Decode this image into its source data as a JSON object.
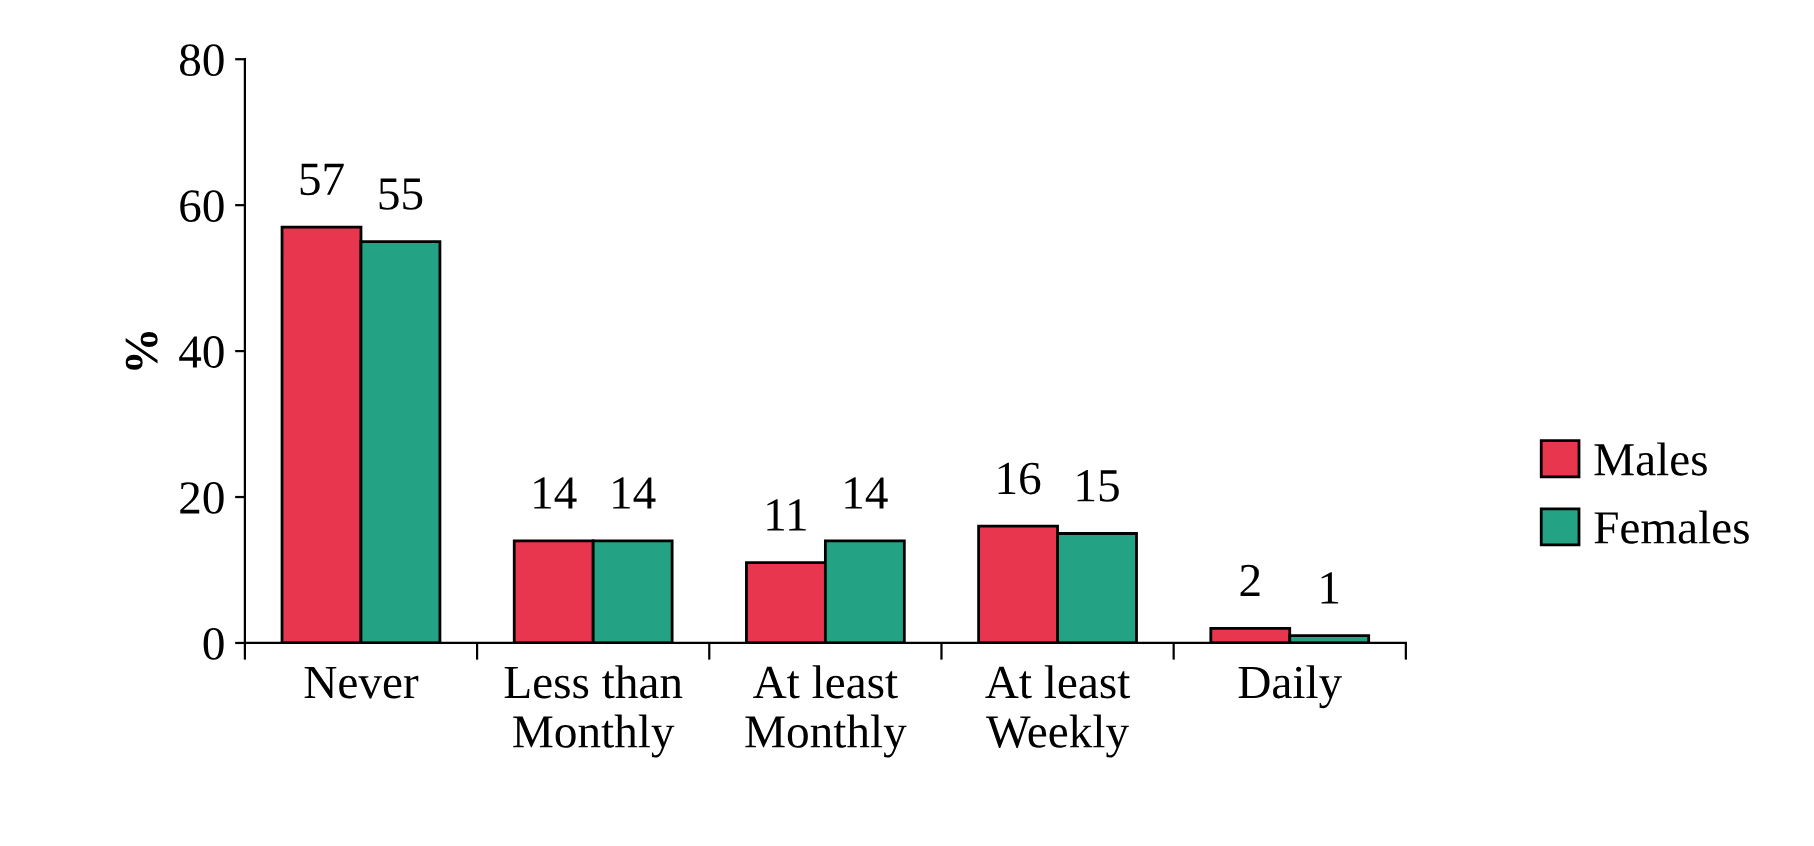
{
  "chart_data": {
    "type": "bar",
    "ylabel": "%",
    "categories": [
      "Never",
      "Less than\nMonthly",
      "At least\nMonthly",
      "At least\nWeekly",
      "Daily"
    ],
    "series": [
      {
        "name": "Males",
        "color": "#e8364e",
        "values": [
          57,
          14,
          11,
          16,
          2
        ]
      },
      {
        "name": "Females",
        "color": "#23a383",
        "values": [
          55,
          14,
          14,
          15,
          1
        ]
      }
    ],
    "ylim": [
      0,
      80
    ],
    "yticks": [
      0,
      20,
      40,
      60,
      80
    ],
    "data_labels": true,
    "grid": false,
    "legend": "right"
  }
}
